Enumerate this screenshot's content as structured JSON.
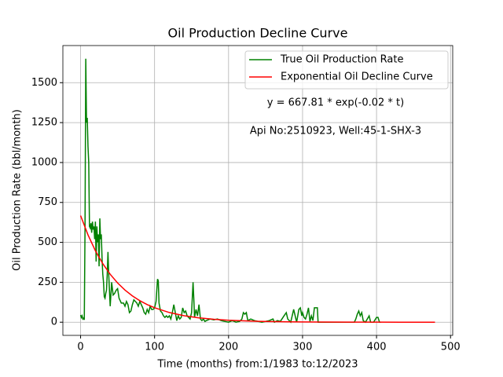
{
  "chart_data": {
    "type": "line",
    "title": "Oil Production Decline Curve",
    "xlabel": "Time (months) from:1/1983 to:12/2023",
    "ylabel": "Oil Production Rate (bbl/month)",
    "annotations": [
      "y = 667.81 * exp(-0.02 * t)",
      "Api No:2510923, Well:45-1-SHX-3"
    ],
    "xlim": [
      -23.95,
      502.95
    ],
    "ylim": [
      -82.5,
      1732.5
    ],
    "xticks": [
      0,
      100,
      200,
      300,
      400,
      500
    ],
    "yticks": [
      0,
      250,
      500,
      750,
      1000,
      1250,
      1500
    ],
    "grid": true,
    "legend": "upper right",
    "series": [
      {
        "name": "True Oil Production Rate",
        "color": "#008000",
        "x": [
          0,
          1,
          2,
          3,
          4,
          5,
          6,
          7,
          8,
          9,
          10,
          11,
          12,
          13,
          14,
          15,
          16,
          17,
          18,
          19,
          20,
          21,
          22,
          23,
          24,
          25,
          26,
          27,
          28,
          29,
          30,
          31,
          32,
          33,
          34,
          35,
          36,
          37,
          38,
          39,
          40,
          42,
          44,
          46,
          48,
          50,
          52,
          55,
          58,
          60,
          62,
          64,
          66,
          68,
          70,
          72,
          74,
          76,
          78,
          80,
          82,
          84,
          86,
          88,
          90,
          92,
          94,
          96,
          98,
          100,
          102,
          104,
          105,
          106,
          108,
          110,
          112,
          114,
          116,
          118,
          120,
          122,
          124,
          126,
          128,
          130,
          132,
          134,
          136,
          138,
          140,
          142,
          144,
          146,
          148,
          150,
          152,
          153,
          154,
          156,
          158,
          160,
          162,
          164,
          166,
          168,
          170,
          175,
          180,
          185,
          190,
          195,
          200,
          205,
          210,
          215,
          218,
          220,
          222,
          224,
          226,
          230,
          235,
          240,
          245,
          250,
          255,
          260,
          262,
          266,
          270,
          275,
          278,
          280,
          284,
          286,
          288,
          290,
          292,
          295,
          297,
          299,
          300,
          302,
          304,
          306,
          308,
          310,
          312,
          314,
          316,
          318,
          320,
          321,
          330,
          350,
          370,
          372,
          374,
          376,
          378,
          380,
          382,
          385,
          390,
          392,
          396,
          400,
          402,
          404,
          406
        ],
        "values": [
          45,
          30,
          40,
          20,
          25,
          15,
          600,
          1650,
          1250,
          1280,
          1100,
          1000,
          600,
          590,
          620,
          560,
          630,
          580,
          600,
          520,
          630,
          380,
          600,
          500,
          550,
          350,
          650,
          520,
          550,
          400,
          300,
          250,
          160,
          150,
          180,
          200,
          300,
          440,
          300,
          200,
          100,
          250,
          170,
          180,
          200,
          210,
          150,
          120,
          120,
          100,
          130,
          110,
          60,
          70,
          110,
          140,
          130,
          120,
          100,
          130,
          110,
          90,
          60,
          50,
          80,
          60,
          100,
          80,
          80,
          90,
          130,
          270,
          260,
          120,
          70,
          60,
          40,
          30,
          40,
          30,
          40,
          20,
          60,
          110,
          60,
          10,
          40,
          20,
          30,
          90,
          60,
          70,
          40,
          30,
          20,
          60,
          250,
          150,
          30,
          80,
          40,
          110,
          20,
          10,
          20,
          5,
          10,
          20,
          15,
          20,
          10,
          5,
          0,
          10,
          0,
          5,
          20,
          60,
          50,
          60,
          10,
          20,
          10,
          5,
          0,
          5,
          10,
          20,
          0,
          10,
          5,
          40,
          60,
          20,
          0,
          40,
          80,
          40,
          0,
          80,
          90,
          40,
          60,
          30,
          20,
          50,
          90,
          5,
          40,
          10,
          90,
          90,
          90,
          0,
          0,
          0,
          0,
          20,
          50,
          70,
          40,
          60,
          10,
          0,
          40,
          0,
          0,
          30,
          30,
          0,
          0
        ]
      },
      {
        "name": "Exponential Oil Decline Curve",
        "color": "#ff0000",
        "x": [
          0,
          10,
          20,
          30,
          40,
          50,
          60,
          70,
          80,
          90,
          100,
          120,
          140,
          160,
          180,
          200,
          240,
          280,
          320,
          360,
          400,
          440,
          479
        ],
        "values": [
          667.81,
          546.76,
          447.65,
          366.49,
          300.06,
          245.67,
          201.14,
          164.68,
          134.83,
          110.39,
          90.38,
          60.58,
          40.61,
          27.22,
          18.25,
          12.23,
          5.49,
          2.47,
          1.11,
          0.5,
          0.22,
          0.1,
          0.05
        ]
      }
    ]
  }
}
